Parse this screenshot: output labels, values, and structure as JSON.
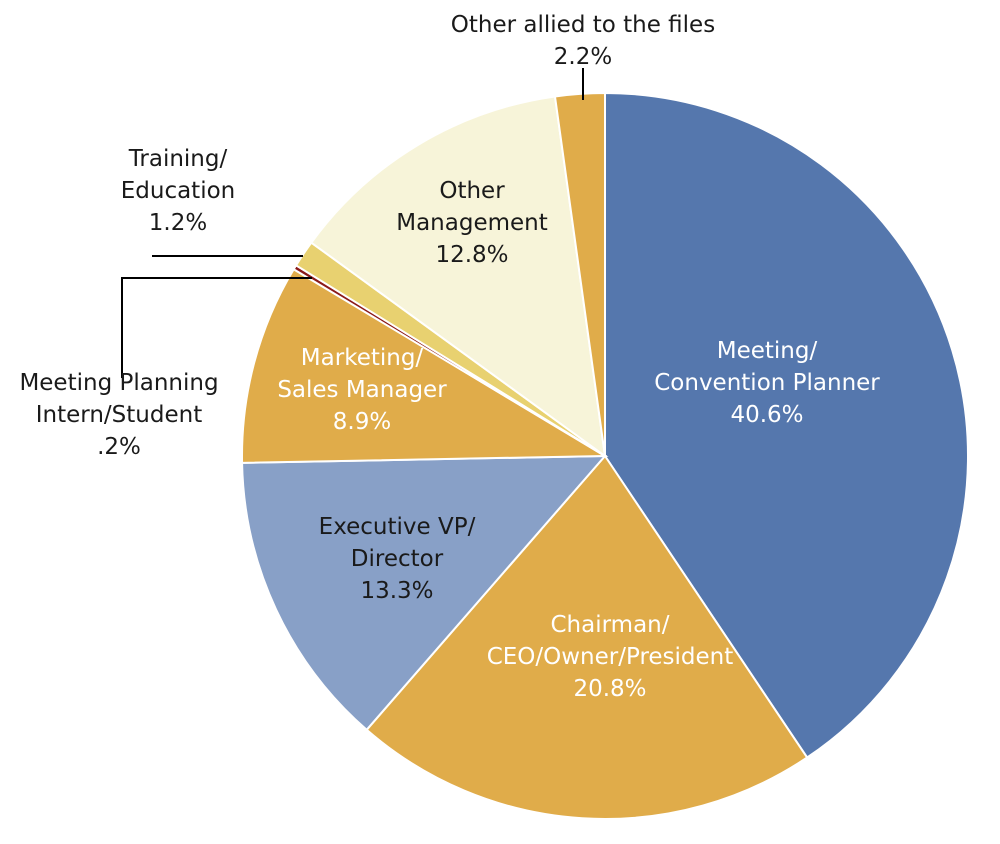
{
  "chart_data": {
    "type": "pie",
    "slices": [
      {
        "label": [
          "Meeting/",
          "Convention Planner"
        ],
        "value": 40.6,
        "value_text": "40.6%",
        "color": "#5577ad",
        "text_color": "#ffffff"
      },
      {
        "label": [
          "Chairman/",
          "CEO/Owner/President"
        ],
        "value": 20.8,
        "value_text": "20.8%",
        "color": "#e0ac4a",
        "text_color": "#ffffff"
      },
      {
        "label": [
          "Executive VP/",
          "Director"
        ],
        "value": 13.3,
        "value_text": "13.3%",
        "color": "#88a0c7",
        "text_color": "#1a1a1a"
      },
      {
        "label": [
          "Marketing/",
          "Sales Manager"
        ],
        "value": 8.9,
        "value_text": "8.9%",
        "color": "#e0ac4a",
        "text_color": "#ffffff"
      },
      {
        "label": [
          "Meeting Planning",
          "Intern/Student"
        ],
        "value": 0.2,
        "value_text": ".2%",
        "color": "#8b1a1a",
        "text_color": "#1a1a1a"
      },
      {
        "label": [
          "Training/",
          "Education"
        ],
        "value": 1.2,
        "value_text": "1.2%",
        "color": "#e8d170",
        "text_color": "#1a1a1a"
      },
      {
        "label": [
          "Other",
          "Management"
        ],
        "value": 12.8,
        "value_text": "12.8%",
        "color": "#f7f4d9",
        "text_color": "#1a1a1a"
      },
      {
        "label": [
          "Other allied to the files"
        ],
        "value": 2.2,
        "value_text": "2.2%",
        "color": "#e0ac4a",
        "text_color": "#1a1a1a"
      }
    ]
  }
}
